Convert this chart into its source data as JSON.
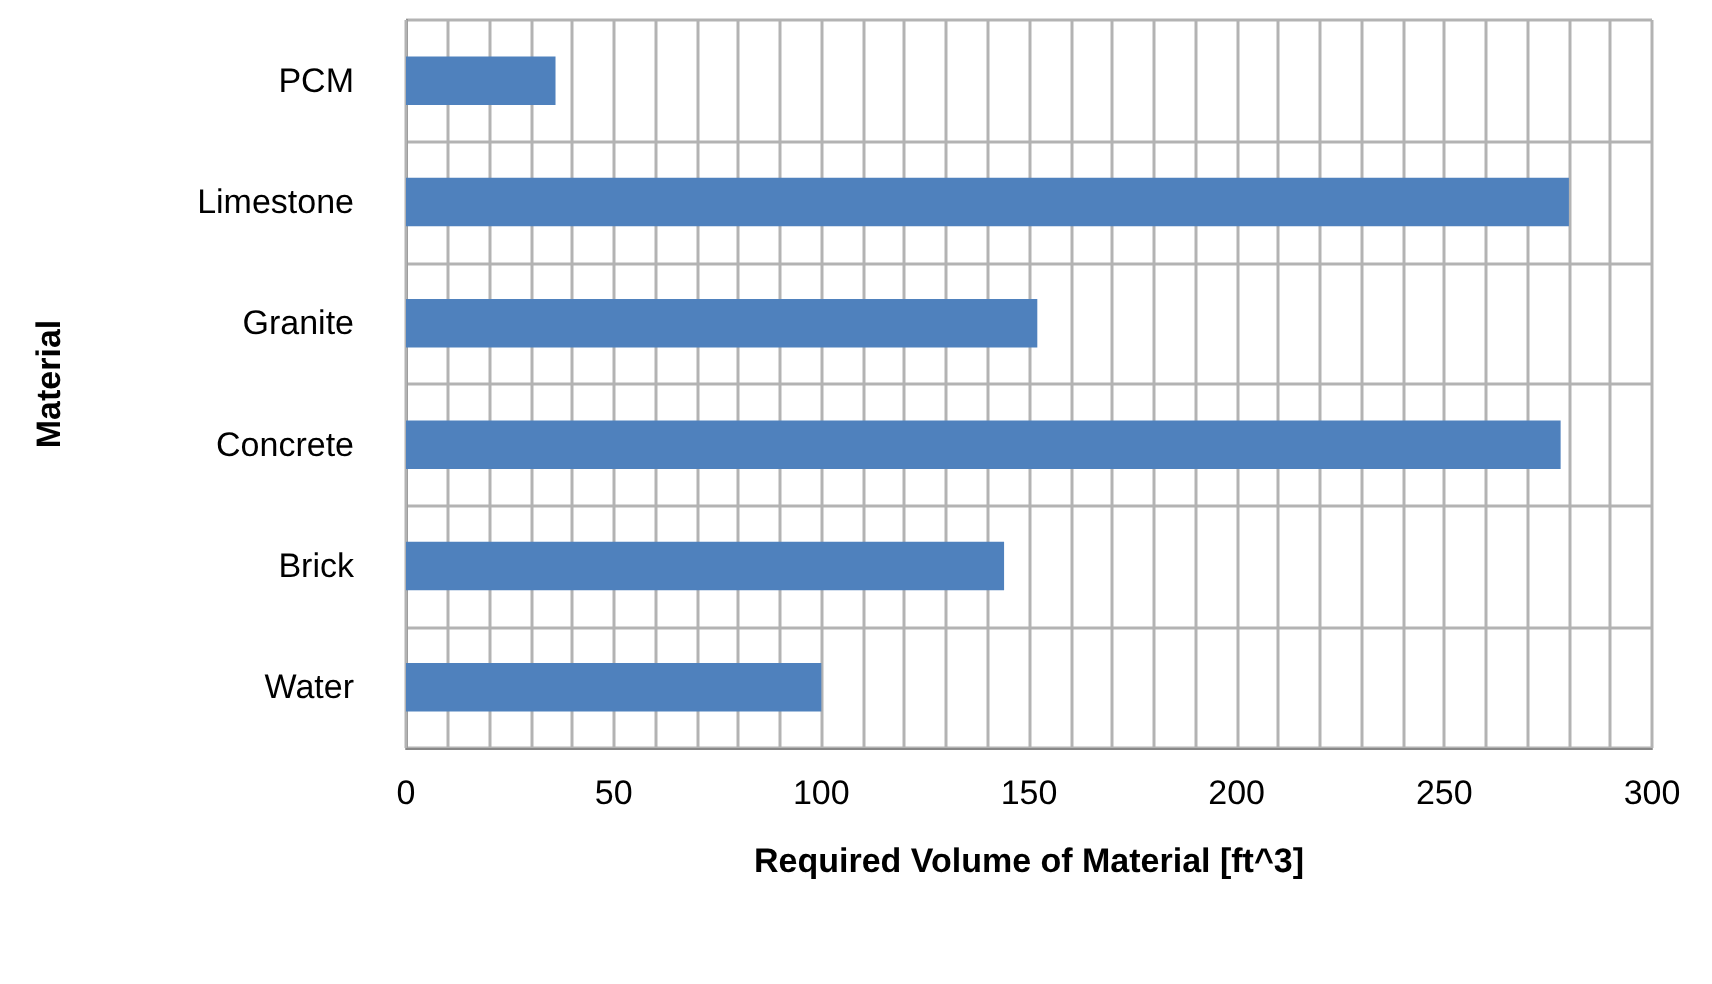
{
  "chart_data": {
    "type": "bar",
    "orientation": "horizontal",
    "xlabel": "Required Volume of Material [ft^3]",
    "ylabel": "Material",
    "categories": [
      "PCM",
      "Limestone",
      "Granite",
      "Concrete",
      "Brick",
      "Water"
    ],
    "values": [
      36,
      280,
      152,
      278,
      144,
      100
    ],
    "color": "#4f81bd",
    "xlim": [
      0,
      300
    ],
    "xticks": [
      0,
      {
        "value": 10,
        "label": null
      },
      {
        "value": 20,
        "label": null
      },
      {
        "value": 30,
        "label": null
      },
      {
        "value": 40,
        "label": null
      },
      50,
      {
        "value": 60,
        "label": null
      },
      {
        "value": 70,
        "label": null
      },
      {
        "value": 80,
        "label": null
      },
      {
        "value": 90,
        "label": null
      },
      100,
      {
        "value": 110,
        "label": null
      },
      {
        "value": 120,
        "label": null
      },
      {
        "value": 130,
        "label": null
      },
      {
        "value": 140,
        "label": null
      },
      150,
      {
        "value": 160,
        "label": null
      },
      {
        "value": 170,
        "label": null
      },
      {
        "value": 180,
        "label": null
      },
      {
        "value": 190,
        "label": null
      },
      200,
      {
        "value": 210,
        "label": null
      },
      {
        "value": 220,
        "label": null
      },
      {
        "value": 230,
        "label": null
      },
      {
        "value": 240,
        "label": null
      },
      250,
      {
        "value": 260,
        "label": null
      },
      {
        "value": 270,
        "label": null
      },
      {
        "value": 280,
        "label": null
      },
      {
        "value": 290,
        "label": null
      },
      300
    ],
    "grid": true
  }
}
